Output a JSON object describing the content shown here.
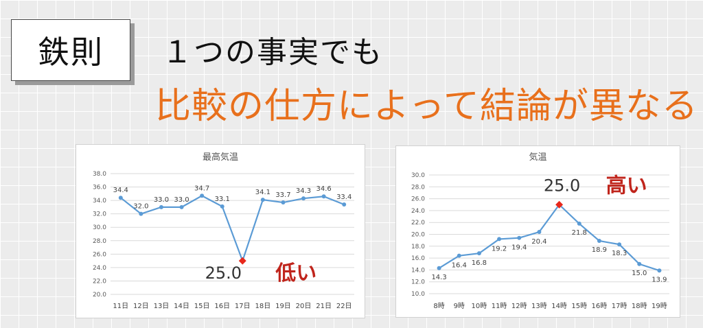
{
  "header": {
    "rule_label": "鉄則",
    "line1": "１つの事実でも",
    "line2": "比較の仕方によって結論が異なる"
  },
  "colors": {
    "accent": "#e8701c",
    "series": "#5b9bd5",
    "highlight": "#e8281c",
    "callout": "#c0251c"
  },
  "chart_data": [
    {
      "type": "line",
      "title": "最高気温",
      "categories": [
        "11日",
        "12日",
        "13日",
        "14日",
        "15日",
        "16日",
        "17日",
        "18日",
        "19日",
        "20日",
        "21日",
        "22日"
      ],
      "values": [
        34.4,
        32.0,
        33.0,
        33.0,
        34.7,
        33.1,
        25.0,
        34.1,
        33.7,
        34.3,
        34.6,
        33.4
      ],
      "data_labels": [
        "34.4",
        "32.0",
        "33.0",
        "33.0",
        "34.7",
        "33.1",
        "",
        "34.1",
        "33.7",
        "34.3",
        "34.6",
        "33.4"
      ],
      "ylim": [
        20.0,
        38.0
      ],
      "yticks": [
        "38.0",
        "36.0",
        "34.0",
        "32.0",
        "30.0",
        "28.0",
        "26.0",
        "24.0",
        "22.0",
        "20.0"
      ],
      "highlight_index": 6,
      "highlight_value": "25.0",
      "callout": "低い",
      "grid": true
    },
    {
      "type": "line",
      "title": "気温",
      "categories": [
        "8時",
        "9時",
        "10時",
        "11時",
        "12時",
        "13時",
        "14時",
        "15時",
        "16時",
        "17時",
        "18時",
        "19時"
      ],
      "values": [
        14.3,
        16.4,
        16.8,
        19.2,
        19.4,
        20.4,
        25.0,
        21.8,
        18.9,
        18.3,
        15.0,
        13.9
      ],
      "data_labels": [
        "14.3",
        "16.4",
        "16.8",
        "19.2",
        "19.4",
        "20.4",
        "",
        "21.8",
        "18.9",
        "18.3",
        "15.0",
        "13.9"
      ],
      "ylim": [
        10.0,
        30.0
      ],
      "yticks": [
        "30.0",
        "28.0",
        "26.0",
        "24.0",
        "22.0",
        "20.0",
        "18.0",
        "16.0",
        "14.0",
        "12.0",
        "10.0"
      ],
      "highlight_index": 6,
      "highlight_value": "25.0",
      "callout": "高い",
      "grid": true
    }
  ]
}
